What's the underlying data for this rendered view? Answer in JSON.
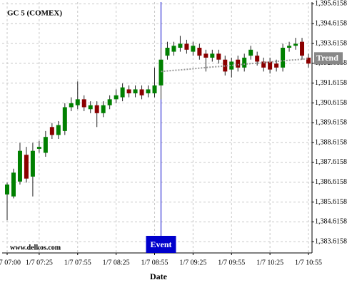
{
  "chart_data": {
    "type": "candlestick",
    "title": "GC 5 (COMEX)",
    "x_label": "Date",
    "watermark": "www.delkos.com",
    "grid": true,
    "up_color": "#008000",
    "down_color": "#8b0000",
    "categories": [
      "1/7 07:00",
      null,
      null,
      null,
      null,
      "1/7 07:25",
      null,
      null,
      null,
      null,
      null,
      "1/7 07:55",
      null,
      null,
      null,
      null,
      null,
      "1/7 08:25",
      null,
      null,
      null,
      null,
      null,
      "1/7 08:55",
      null,
      null,
      null,
      null,
      null,
      "1/7 09:25",
      null,
      null,
      null,
      null,
      null,
      "1/7 09:55",
      null,
      null,
      null,
      null,
      null,
      "1/7 10:25",
      null,
      null,
      null,
      null,
      null,
      "1/7 10:55"
    ],
    "open": [
      1386.0,
      1385.9,
      1386.65,
      1388.0,
      1386.9,
      1388.3,
      1388.1,
      1389.4,
      1389.0,
      1389.2,
      1390.4,
      1390.5,
      1390.8,
      1390.3,
      1390.5,
      1390.1,
      1390.5,
      1390.8,
      1390.9,
      1391.3,
      1391.1,
      1391.3,
      1391.1,
      1391.1,
      1391.5,
      1393.0,
      1393.2,
      1393.4,
      1393.6,
      1393.2,
      1393.4,
      1393.1,
      1392.9,
      1393.1,
      1392.8,
      1392.3,
      1392.8,
      1392.4,
      1393.0,
      1393.0,
      1392.7,
      1392.7,
      1392.6,
      1392.4,
      1393.4,
      1393.5,
      1393.7,
      1392.9
    ],
    "high": [
      1386.6,
      1387.3,
      1388.6,
      1388.4,
      1388.6,
      1388.7,
      1389.2,
      1389.6,
      1389.7,
      1390.6,
      1390.9,
      1391.7,
      1391.0,
      1390.7,
      1390.7,
      1390.7,
      1391.0,
      1391.3,
      1391.6,
      1391.5,
      1391.5,
      1391.5,
      1391.5,
      1392.4,
      1393.4,
      1393.7,
      1393.7,
      1394.0,
      1393.8,
      1393.7,
      1393.6,
      1393.3,
      1393.3,
      1393.3,
      1393.0,
      1392.9,
      1393.0,
      1393.1,
      1393.5,
      1393.2,
      1392.9,
      1392.9,
      1392.8,
      1393.6,
      1393.7,
      1393.9,
      1393.9,
      1393.1
    ],
    "low": [
      1384.7,
      1385.8,
      1386.5,
      1386.6,
      1385.9,
      1388.1,
      1387.9,
      1388.8,
      1388.8,
      1389.0,
      1390.2,
      1390.3,
      1390.2,
      1390.1,
      1389.4,
      1389.9,
      1390.3,
      1390.6,
      1390.7,
      1390.9,
      1390.9,
      1390.8,
      1390.9,
      1390.9,
      1390.8,
      1392.8,
      1393.0,
      1393.2,
      1393.1,
      1393.0,
      1392.8,
      1392.2,
      1392.7,
      1392.6,
      1392.0,
      1391.9,
      1392.2,
      1392.2,
      1392.8,
      1392.5,
      1392.2,
      1392.1,
      1392.2,
      1392.2,
      1393.2,
      1393.3,
      1392.8,
      1392.4
    ],
    "close": [
      1386.5,
      1387.1,
      1388.2,
      1386.8,
      1388.2,
      1388.4,
      1388.9,
      1389.0,
      1389.5,
      1390.4,
      1390.6,
      1390.8,
      1390.4,
      1390.5,
      1390.1,
      1390.5,
      1390.8,
      1391.0,
      1391.4,
      1391.1,
      1391.3,
      1391.0,
      1391.3,
      1391.5,
      1392.8,
      1393.4,
      1393.5,
      1393.6,
      1393.3,
      1393.5,
      1393.0,
      1392.9,
      1393.1,
      1392.8,
      1392.2,
      1392.7,
      1392.4,
      1392.9,
      1393.3,
      1392.7,
      1392.4,
      1392.3,
      1392.4,
      1393.4,
      1393.5,
      1393.6,
      1393.0,
      1392.6
    ],
    "trend": {
      "name": "Trend",
      "color": "#999999",
      "values": [
        null,
        null,
        null,
        null,
        null,
        null,
        null,
        null,
        null,
        null,
        null,
        null,
        null,
        null,
        null,
        null,
        null,
        null,
        null,
        null,
        null,
        null,
        null,
        null,
        1392.2,
        1392.23,
        1392.26,
        1392.28,
        1392.31,
        1392.34,
        1392.37,
        1392.4,
        1392.43,
        1392.45,
        1392.48,
        1392.51,
        1392.54,
        1392.57,
        1392.6,
        1392.62,
        1392.65,
        1392.68,
        1392.71,
        1392.74,
        1392.77,
        1392.79,
        1392.82,
        1392.85
      ]
    },
    "event": {
      "label": "Event",
      "index": 24,
      "color": "#0000cc"
    },
    "ylim": [
      1383.05,
      1395.7
    ],
    "yticks": [
      {
        "value": 1383.6158,
        "label": "1,383.6158"
      },
      {
        "value": 1384.6158,
        "label": "1,384.6158"
      },
      {
        "value": 1385.6158,
        "label": "1,385.6158"
      },
      {
        "value": 1386.6158,
        "label": "1,386.6158"
      },
      {
        "value": 1387.6158,
        "label": "1,387.6158"
      },
      {
        "value": 1388.6158,
        "label": "1,388.6158"
      },
      {
        "value": 1389.6158,
        "label": "1,389.6158"
      },
      {
        "value": 1390.6158,
        "label": "1,390.6158"
      },
      {
        "value": 1391.6158,
        "label": "1,391.6158"
      },
      {
        "value": 1392.6158,
        "label": "1,392.6158"
      },
      {
        "value": 1393.6158,
        "label": "1,393.6158"
      },
      {
        "value": 1394.6158,
        "label": "1,394.6158"
      },
      {
        "value": 1395.6158,
        "label": "1,395.6158"
      }
    ]
  }
}
